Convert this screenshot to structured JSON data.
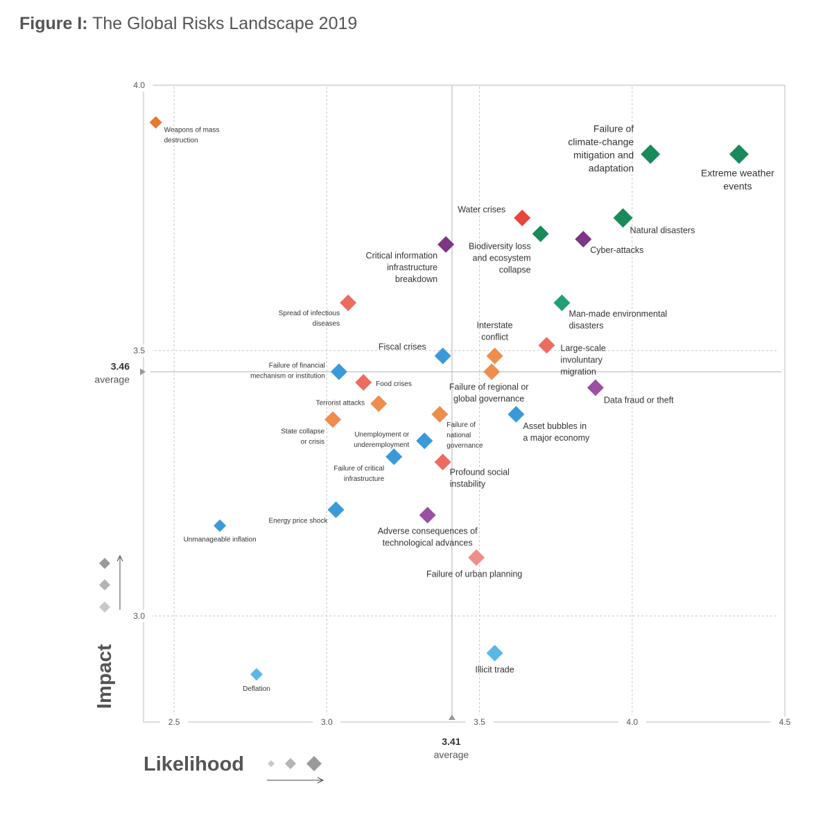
{
  "title": {
    "prefix": "Figure I:",
    "text": "The Global Risks Landscape 2019"
  },
  "chart_data": {
    "type": "scatter",
    "xlabel": "Likelihood",
    "ylabel": "Impact",
    "xlim": [
      2.4,
      4.5
    ],
    "ylim": [
      2.8,
      4.0
    ],
    "xticks": [
      "2.5",
      "3.0",
      "3.5",
      "4.0",
      "4.5"
    ],
    "yticks": [
      "3.0",
      "3.5",
      "4.0"
    ],
    "averages": {
      "x": {
        "value": 3.41,
        "label": "3.41",
        "text": "average"
      },
      "y": {
        "value": 3.46,
        "label": "3.46",
        "text": "average"
      }
    },
    "grid": true,
    "colors": {
      "economic": "#3a9ad9",
      "economic_light": "#5bb8e6",
      "environmental": "#1b8a5a",
      "environmental_light": "#22a073",
      "geopolitical": "#ee8d4e",
      "societal": "#ec6c60",
      "societal_light": "#ef8f8a",
      "technological": "#7d3585",
      "technological_light": "#9a4fa3",
      "water": "#e8453c",
      "wmd": "#e87830"
    },
    "points": [
      {
        "name": "Weapons of mass destruction",
        "lines": [
          "Weapons of mass",
          "destruction"
        ],
        "x": 2.44,
        "y": 3.93,
        "size": 1,
        "color": "#e87830"
      },
      {
        "name": "Failure of climate-change mitigation and adaptation",
        "lines": [
          "Failure of",
          "climate-change",
          "mitigation and",
          "adaptation"
        ],
        "x": 4.06,
        "y": 3.87,
        "size": 3,
        "color": "#1b8a5a"
      },
      {
        "name": "Extreme weather events",
        "lines": [
          "Extreme weather",
          "events"
        ],
        "x": 4.35,
        "y": 3.87,
        "size": 3,
        "color": "#1b8a5a"
      },
      {
        "name": "Water crises",
        "lines": [
          "Water crises"
        ],
        "x": 3.64,
        "y": 3.75,
        "size": 2,
        "color": "#e8453c"
      },
      {
        "name": "Natural disasters",
        "lines": [
          "Natural disasters"
        ],
        "x": 3.97,
        "y": 3.75,
        "size": 3,
        "color": "#1b8a5a"
      },
      {
        "name": "Biodiversity loss and ecosystem collapse",
        "lines": [
          "Biodiversity loss",
          "and ecosystem",
          "collapse"
        ],
        "x": 3.7,
        "y": 3.72,
        "size": 2,
        "color": "#1b8a5a"
      },
      {
        "name": "Cyber-attacks",
        "lines": [
          "Cyber-attacks"
        ],
        "x": 3.84,
        "y": 3.71,
        "size": 2,
        "color": "#7d3585"
      },
      {
        "name": "Critical information infrastructure breakdown",
        "lines": [
          "Critical information",
          "infrastructure",
          "breakdown"
        ],
        "x": 3.39,
        "y": 3.7,
        "size": 2,
        "color": "#7d3585"
      },
      {
        "name": "Spread of infectious diseases",
        "lines": [
          "Spread of infectious",
          "diseases"
        ],
        "x": 3.07,
        "y": 3.59,
        "size": 2,
        "color": "#ec6c60"
      },
      {
        "name": "Man-made environmental disasters",
        "lines": [
          "Man-made environmental",
          "disasters"
        ],
        "x": 3.77,
        "y": 3.59,
        "size": 2,
        "color": "#22a073"
      },
      {
        "name": "Interstate conflict",
        "lines": [
          "Interstate",
          "conflict"
        ],
        "x": 3.55,
        "y": 3.49,
        "size": 2,
        "color": "#ee8d4e"
      },
      {
        "name": "Large-scale involuntary migration",
        "lines": [
          "Large-scale",
          "involuntary",
          "migration"
        ],
        "x": 3.72,
        "y": 3.51,
        "size": 2,
        "color": "#ec6c60"
      },
      {
        "name": "Fiscal crises",
        "lines": [
          "Fiscal crises"
        ],
        "x": 3.38,
        "y": 3.49,
        "size": 2,
        "color": "#3a9ad9"
      },
      {
        "name": "Failure of regional or global governance",
        "lines": [
          "Failure of regional or",
          "global governance"
        ],
        "x": 3.54,
        "y": 3.46,
        "size": 2,
        "color": "#ee8d4e"
      },
      {
        "name": "Failure of financial mechanism or institution",
        "lines": [
          "Failure of financial",
          "mechanism or institution"
        ],
        "x": 3.04,
        "y": 3.46,
        "size": 2,
        "color": "#3a9ad9"
      },
      {
        "name": "Food crises",
        "lines": [
          "Food crises"
        ],
        "x": 3.12,
        "y": 3.44,
        "size": 2,
        "color": "#ec6c60"
      },
      {
        "name": "Data fraud or theft",
        "lines": [
          "Data fraud or theft"
        ],
        "x": 3.88,
        "y": 3.43,
        "size": 2,
        "color": "#9a4fa3"
      },
      {
        "name": "Terrorist attacks",
        "lines": [
          "Terrorist attacks"
        ],
        "x": 3.17,
        "y": 3.4,
        "size": 2,
        "color": "#ee8d4e"
      },
      {
        "name": "Failure of national governance",
        "lines": [
          "Failure of",
          "national",
          "governance"
        ],
        "x": 3.37,
        "y": 3.38,
        "size": 2,
        "color": "#ee8d4e"
      },
      {
        "name": "Asset bubbles in a major economy",
        "lines": [
          "Asset bubbles in",
          "a major economy"
        ],
        "x": 3.62,
        "y": 3.38,
        "size": 2,
        "color": "#3a9ad9"
      },
      {
        "name": "State collapse or crisis",
        "lines": [
          "State collapse",
          "or crisis"
        ],
        "x": 3.02,
        "y": 3.37,
        "size": 2,
        "color": "#ee8d4e"
      },
      {
        "name": "Unemployment or underemployment",
        "lines": [
          "Unemployment or",
          "underemployment"
        ],
        "x": 3.32,
        "y": 3.33,
        "size": 2,
        "color": "#3a9ad9"
      },
      {
        "name": "Failure of critical infrastructure",
        "lines": [
          "Failure of critical",
          "infrastructure"
        ],
        "x": 3.22,
        "y": 3.3,
        "size": 2,
        "color": "#3a9ad9"
      },
      {
        "name": "Profound social instability",
        "lines": [
          "Profound social",
          "instability"
        ],
        "x": 3.38,
        "y": 3.29,
        "size": 2,
        "color": "#ec6c60"
      },
      {
        "name": "Energy price shock",
        "lines": [
          "Energy price shock"
        ],
        "x": 3.03,
        "y": 3.2,
        "size": 2,
        "color": "#3a9ad9"
      },
      {
        "name": "Unmanageable inflation",
        "lines": [
          "Unmanageable inflation"
        ],
        "x": 2.65,
        "y": 3.17,
        "size": 1,
        "color": "#3a9ad9"
      },
      {
        "name": "Adverse consequences of technological advances",
        "lines": [
          "Adverse consequences of",
          "technological advances"
        ],
        "x": 3.33,
        "y": 3.19,
        "size": 2,
        "color": "#9a4fa3"
      },
      {
        "name": "Failure of urban planning",
        "lines": [
          "Failure of urban planning"
        ],
        "x": 3.49,
        "y": 3.11,
        "size": 2,
        "color": "#ef8f8a"
      },
      {
        "name": "Illicit trade",
        "lines": [
          "Illicit trade"
        ],
        "x": 3.55,
        "y": 2.93,
        "size": 2,
        "color": "#5bb8e6"
      },
      {
        "name": "Deflation",
        "lines": [
          "Deflation"
        ],
        "x": 2.77,
        "y": 2.89,
        "size": 1,
        "color": "#5bb8e6"
      }
    ]
  }
}
